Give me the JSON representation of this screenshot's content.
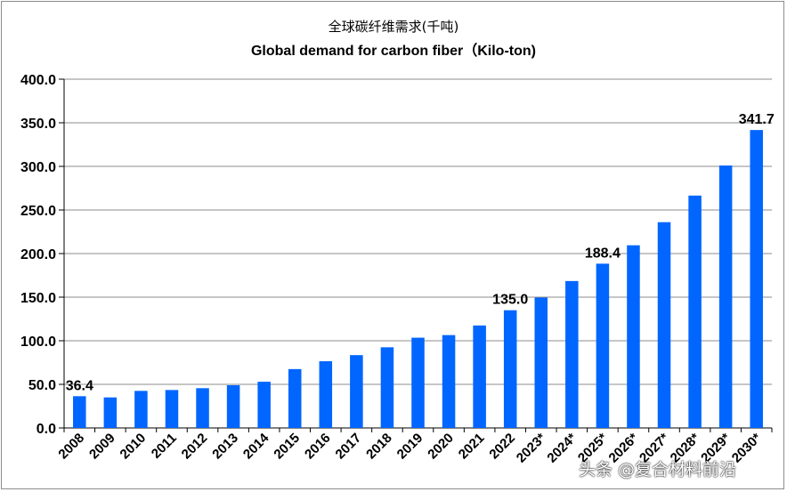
{
  "chart_data": {
    "type": "bar",
    "title": "全球碳纤维需求(千吨)",
    "subtitle": "Global demand for carbon fiber（Kilo-ton)",
    "xlabel": "",
    "ylabel": "",
    "ylim": [
      0,
      400
    ],
    "yticks": [
      "0.0",
      "50.0",
      "100.0",
      "150.0",
      "200.0",
      "250.0",
      "300.0",
      "350.0",
      "400.0"
    ],
    "grid": true,
    "bar_color": "#0066ff",
    "categories": [
      "2008",
      "2009",
      "2010",
      "2011",
      "2012",
      "2013",
      "2014",
      "2015",
      "2016",
      "2017",
      "2018",
      "2019",
      "2020",
      "2021",
      "2022",
      "2023*",
      "2024*",
      "2025*",
      "2026*",
      "2027*",
      "2028*",
      "2029*",
      "2030*"
    ],
    "values": [
      36.4,
      35.0,
      42.5,
      43.5,
      45.6,
      49.0,
      53.0,
      67.5,
      76.5,
      83.5,
      92.5,
      103.5,
      106.5,
      117.5,
      135.0,
      149.5,
      168.5,
      188.4,
      209.5,
      236.0,
      266.5,
      301.0,
      341.7
    ],
    "data_labels": [
      {
        "index": 0,
        "text": "36.4"
      },
      {
        "index": 14,
        "text": "135.0"
      },
      {
        "index": 17,
        "text": "188.4"
      },
      {
        "index": 22,
        "text": "341.7"
      }
    ]
  },
  "watermark": "头条 @复合材料前沿"
}
